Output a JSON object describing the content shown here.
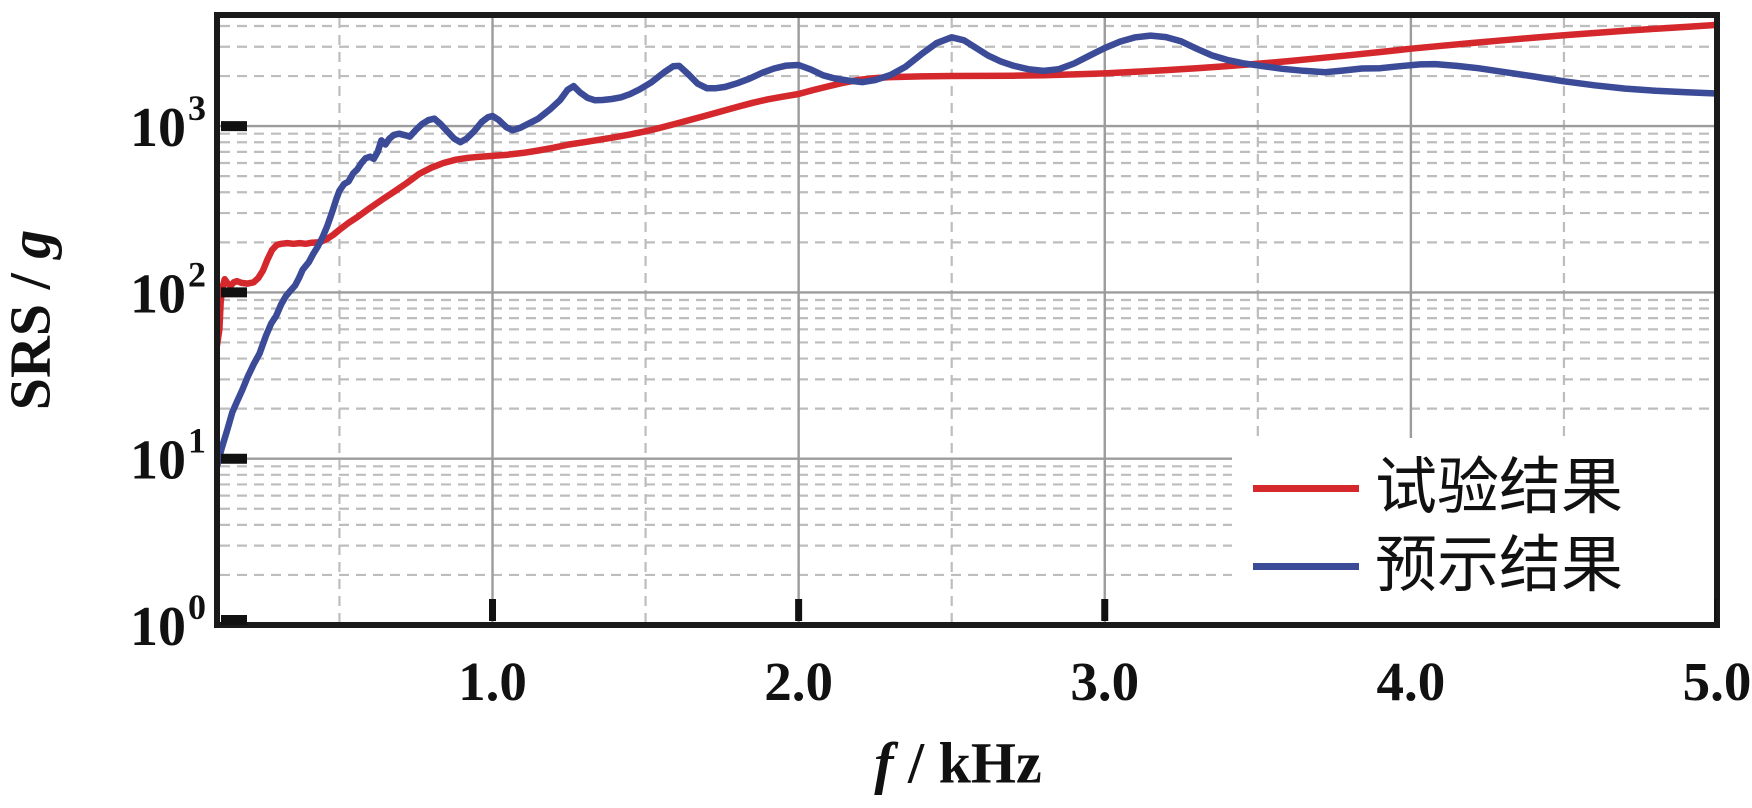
{
  "figure": {
    "background": "#ffffff",
    "frame_color": "#1a1a1a"
  },
  "chart_data": {
    "type": "line",
    "title": "",
    "xlabel_symbol": "f",
    "xlabel_rest": " / kHz",
    "ylabel_main": "SRS / ",
    "ylabel_unit": "g",
    "x_axis": {
      "scale": "linear",
      "min": 0.1,
      "max": 5.0,
      "major_ticks": [
        1.0,
        2.0,
        3.0,
        4.0,
        5.0
      ],
      "tick_labels": [
        "1.0",
        "2.0",
        "3.0",
        "4.0",
        "5.0"
      ],
      "minor_gridlines": [
        0.5,
        1.5,
        2.5,
        3.5,
        4.5
      ]
    },
    "y_axis": {
      "scale": "log",
      "min": 1,
      "max": 4700,
      "major_ticks": [
        1,
        10,
        100,
        1000
      ],
      "tick_labels": [
        {
          "base": "10",
          "exp": "0"
        },
        {
          "base": "10",
          "exp": "1"
        },
        {
          "base": "10",
          "exp": "2"
        },
        {
          "base": "10",
          "exp": "3"
        }
      ]
    },
    "grid": {
      "major_color": "#9c9c9c",
      "minor_color": "#bdbdbd",
      "minor_dash": "10 7",
      "grid_on": true
    },
    "legend": {
      "position": "inside-bottom-right",
      "entries": [
        {
          "label": "试验结果",
          "color": "#d5282d"
        },
        {
          "label": "预示结果",
          "color": "#3b4b97"
        }
      ]
    },
    "series": [
      {
        "name": "试验结果",
        "color": "#d5282d",
        "points": [
          [
            0.1,
            48
          ],
          [
            0.108,
            60
          ],
          [
            0.112,
            88
          ],
          [
            0.118,
            107
          ],
          [
            0.125,
            120
          ],
          [
            0.135,
            113
          ],
          [
            0.145,
            110
          ],
          [
            0.155,
            115
          ],
          [
            0.165,
            117
          ],
          [
            0.18,
            114
          ],
          [
            0.2,
            113
          ],
          [
            0.22,
            115
          ],
          [
            0.235,
            122
          ],
          [
            0.25,
            135
          ],
          [
            0.265,
            158
          ],
          [
            0.28,
            180
          ],
          [
            0.295,
            193
          ],
          [
            0.31,
            196
          ],
          [
            0.33,
            198
          ],
          [
            0.35,
            196
          ],
          [
            0.37,
            198
          ],
          [
            0.39,
            196
          ],
          [
            0.41,
            199
          ],
          [
            0.435,
            200
          ],
          [
            0.46,
            210
          ],
          [
            0.48,
            222
          ],
          [
            0.5,
            238
          ],
          [
            0.53,
            262
          ],
          [
            0.56,
            285
          ],
          [
            0.6,
            322
          ],
          [
            0.64,
            362
          ],
          [
            0.68,
            405
          ],
          [
            0.72,
            455
          ],
          [
            0.76,
            515
          ],
          [
            0.8,
            562
          ],
          [
            0.84,
            600
          ],
          [
            0.88,
            628
          ],
          [
            0.92,
            645
          ],
          [
            0.96,
            655
          ],
          [
            1.0,
            662
          ],
          [
            1.05,
            673
          ],
          [
            1.1,
            690
          ],
          [
            1.15,
            713
          ],
          [
            1.2,
            742
          ],
          [
            1.25,
            775
          ],
          [
            1.3,
            800
          ],
          [
            1.35,
            828
          ],
          [
            1.4,
            858
          ],
          [
            1.45,
            892
          ],
          [
            1.5,
            930
          ],
          [
            1.55,
            980
          ],
          [
            1.6,
            1035
          ],
          [
            1.65,
            1095
          ],
          [
            1.7,
            1160
          ],
          [
            1.75,
            1230
          ],
          [
            1.8,
            1305
          ],
          [
            1.85,
            1380
          ],
          [
            1.9,
            1450
          ],
          [
            1.95,
            1505
          ],
          [
            2.0,
            1560
          ],
          [
            2.05,
            1650
          ],
          [
            2.1,
            1740
          ],
          [
            2.15,
            1830
          ],
          [
            2.2,
            1900
          ],
          [
            2.25,
            1945
          ],
          [
            2.3,
            1970
          ],
          [
            2.4,
            1990
          ],
          [
            2.5,
            2000
          ],
          [
            2.6,
            2005
          ],
          [
            2.7,
            2010
          ],
          [
            2.8,
            2020
          ],
          [
            2.9,
            2045
          ],
          [
            3.0,
            2075
          ],
          [
            3.1,
            2120
          ],
          [
            3.2,
            2170
          ],
          [
            3.3,
            2230
          ],
          [
            3.4,
            2295
          ],
          [
            3.5,
            2370
          ],
          [
            3.6,
            2460
          ],
          [
            3.7,
            2560
          ],
          [
            3.8,
            2670
          ],
          [
            3.9,
            2790
          ],
          [
            4.0,
            2920
          ],
          [
            4.1,
            3040
          ],
          [
            4.2,
            3160
          ],
          [
            4.3,
            3280
          ],
          [
            4.4,
            3400
          ],
          [
            4.5,
            3520
          ],
          [
            4.6,
            3630
          ],
          [
            4.7,
            3740
          ],
          [
            4.8,
            3850
          ],
          [
            4.9,
            3950
          ],
          [
            5.0,
            4060
          ]
        ]
      },
      {
        "name": "预示结果",
        "color": "#3b4b97",
        "points": [
          [
            0.1,
            9
          ],
          [
            0.115,
            11.5
          ],
          [
            0.134,
            15
          ],
          [
            0.15,
            19
          ],
          [
            0.165,
            22
          ],
          [
            0.183,
            26
          ],
          [
            0.2,
            31
          ],
          [
            0.22,
            37
          ],
          [
            0.239,
            43
          ],
          [
            0.26,
            55
          ],
          [
            0.277,
            65
          ],
          [
            0.293,
            72
          ],
          [
            0.31,
            85
          ],
          [
            0.325,
            95
          ],
          [
            0.337,
            101
          ],
          [
            0.355,
            110
          ],
          [
            0.368,
            122
          ],
          [
            0.38,
            137
          ],
          [
            0.4,
            152
          ],
          [
            0.414,
            170
          ],
          [
            0.428,
            187
          ],
          [
            0.445,
            215
          ],
          [
            0.46,
            250
          ],
          [
            0.475,
            300
          ],
          [
            0.49,
            365
          ],
          [
            0.5,
            408
          ],
          [
            0.515,
            448
          ],
          [
            0.53,
            465
          ],
          [
            0.545,
            520
          ],
          [
            0.558,
            548
          ],
          [
            0.572,
            600
          ],
          [
            0.585,
            640
          ],
          [
            0.6,
            655
          ],
          [
            0.612,
            635
          ],
          [
            0.625,
            700
          ],
          [
            0.637,
            820
          ],
          [
            0.65,
            775
          ],
          [
            0.663,
            840
          ],
          [
            0.678,
            885
          ],
          [
            0.695,
            900
          ],
          [
            0.715,
            880
          ],
          [
            0.73,
            865
          ],
          [
            0.75,
            950
          ],
          [
            0.77,
            1030
          ],
          [
            0.79,
            1085
          ],
          [
            0.81,
            1110
          ],
          [
            0.83,
            1030
          ],
          [
            0.85,
            940
          ],
          [
            0.875,
            840
          ],
          [
            0.895,
            800
          ],
          [
            0.915,
            840
          ],
          [
            0.94,
            930
          ],
          [
            0.965,
            1060
          ],
          [
            0.985,
            1130
          ],
          [
            1.0,
            1150
          ],
          [
            1.02,
            1090
          ],
          [
            1.045,
            985
          ],
          [
            1.065,
            945
          ],
          [
            1.09,
            975
          ],
          [
            1.12,
            1040
          ],
          [
            1.15,
            1110
          ],
          [
            1.19,
            1270
          ],
          [
            1.22,
            1430
          ],
          [
            1.245,
            1650
          ],
          [
            1.265,
            1740
          ],
          [
            1.285,
            1600
          ],
          [
            1.31,
            1480
          ],
          [
            1.335,
            1430
          ],
          [
            1.36,
            1435
          ],
          [
            1.39,
            1455
          ],
          [
            1.42,
            1490
          ],
          [
            1.45,
            1560
          ],
          [
            1.48,
            1660
          ],
          [
            1.52,
            1840
          ],
          [
            1.56,
            2100
          ],
          [
            1.59,
            2290
          ],
          [
            1.61,
            2300
          ],
          [
            1.64,
            2050
          ],
          [
            1.67,
            1800
          ],
          [
            1.7,
            1690
          ],
          [
            1.73,
            1690
          ],
          [
            1.76,
            1720
          ],
          [
            1.8,
            1810
          ],
          [
            1.84,
            1930
          ],
          [
            1.88,
            2090
          ],
          [
            1.92,
            2220
          ],
          [
            1.96,
            2310
          ],
          [
            2.0,
            2330
          ],
          [
            2.04,
            2190
          ],
          [
            2.08,
            2020
          ],
          [
            2.12,
            1930
          ],
          [
            2.16,
            1880
          ],
          [
            2.21,
            1840
          ],
          [
            2.25,
            1890
          ],
          [
            2.3,
            2030
          ],
          [
            2.35,
            2280
          ],
          [
            2.4,
            2700
          ],
          [
            2.45,
            3150
          ],
          [
            2.5,
            3420
          ],
          [
            2.54,
            3280
          ],
          [
            2.58,
            2950
          ],
          [
            2.62,
            2650
          ],
          [
            2.66,
            2450
          ],
          [
            2.7,
            2310
          ],
          [
            2.75,
            2200
          ],
          [
            2.8,
            2150
          ],
          [
            2.85,
            2200
          ],
          [
            2.9,
            2380
          ],
          [
            2.95,
            2650
          ],
          [
            3.0,
            2950
          ],
          [
            3.05,
            3220
          ],
          [
            3.1,
            3420
          ],
          [
            3.15,
            3500
          ],
          [
            3.2,
            3430
          ],
          [
            3.25,
            3230
          ],
          [
            3.3,
            2920
          ],
          [
            3.35,
            2660
          ],
          [
            3.4,
            2500
          ],
          [
            3.45,
            2390
          ],
          [
            3.52,
            2290
          ],
          [
            3.58,
            2210
          ],
          [
            3.65,
            2150
          ],
          [
            3.72,
            2110
          ],
          [
            3.78,
            2160
          ],
          [
            3.84,
            2220
          ],
          [
            3.9,
            2230
          ],
          [
            3.96,
            2290
          ],
          [
            4.03,
            2350
          ],
          [
            4.08,
            2360
          ],
          [
            4.15,
            2300
          ],
          [
            4.22,
            2230
          ],
          [
            4.3,
            2120
          ],
          [
            4.4,
            1990
          ],
          [
            4.5,
            1860
          ],
          [
            4.6,
            1760
          ],
          [
            4.7,
            1680
          ],
          [
            4.8,
            1630
          ],
          [
            4.9,
            1598
          ],
          [
            5.0,
            1570
          ]
        ]
      }
    ]
  }
}
